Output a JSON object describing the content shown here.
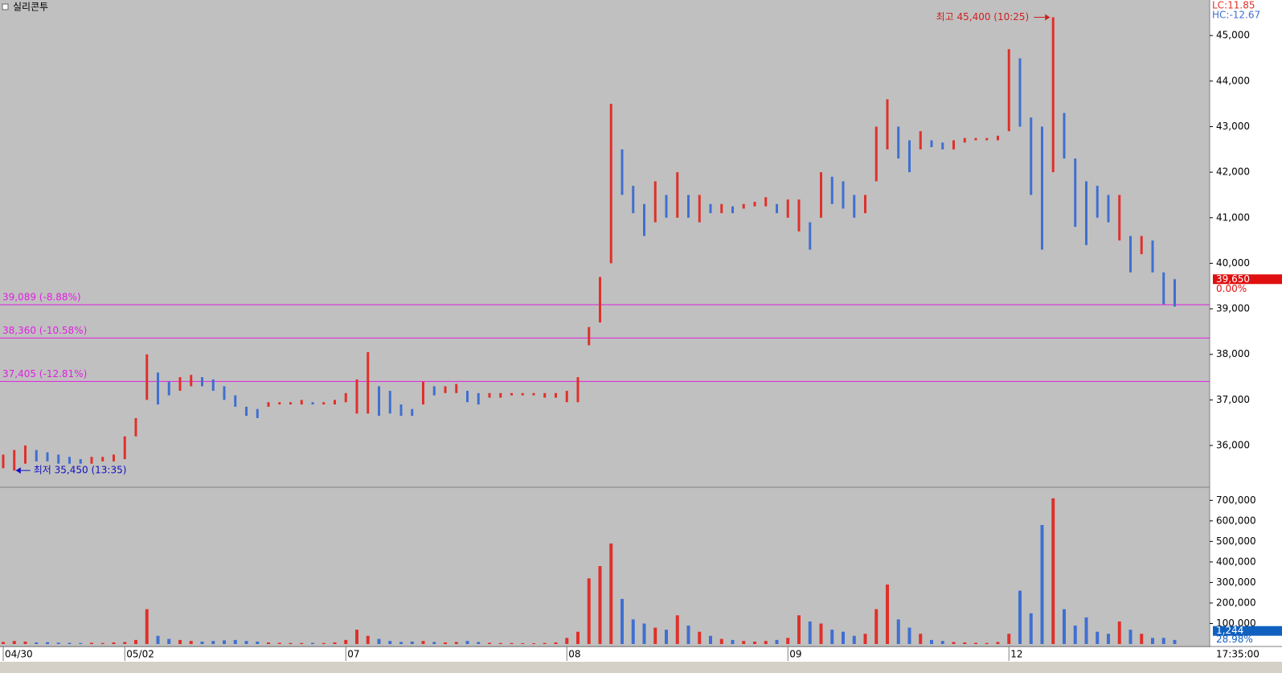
{
  "chart_data": [
    {
      "type": "ohlc",
      "title": "실리콘투",
      "lc_label": "LC:11.85",
      "hc_label": "HC:-12.67",
      "categories": [
        "04/30",
        null,
        null,
        null,
        null,
        null,
        null,
        null,
        null,
        null,
        null,
        "05/02",
        null,
        null,
        null,
        null,
        null,
        null,
        null,
        null,
        null,
        null,
        null,
        null,
        null,
        null,
        null,
        null,
        null,
        null,
        null,
        "07",
        null,
        null,
        null,
        null,
        null,
        null,
        null,
        null,
        null,
        null,
        null,
        null,
        null,
        null,
        null,
        null,
        null,
        null,
        null,
        "08",
        null,
        null,
        null,
        null,
        null,
        null,
        null,
        null,
        null,
        null,
        null,
        null,
        null,
        null,
        null,
        null,
        null,
        null,
        null,
        "09",
        null,
        null,
        null,
        null,
        null,
        null,
        null,
        null,
        null,
        null,
        null,
        null,
        null,
        null,
        null,
        null,
        null,
        null,
        null,
        "12",
        null,
        null,
        null,
        null,
        null,
        null,
        null,
        null,
        null,
        null,
        null,
        null,
        null,
        null,
        null
      ],
      "high": [
        35800,
        35900,
        36000,
        35900,
        35850,
        35800,
        35750,
        35700,
        35750,
        35750,
        35800,
        36200,
        36600,
        38000,
        37600,
        37400,
        37500,
        37550,
        37500,
        37450,
        37300,
        37100,
        36850,
        36800,
        36950,
        36950,
        36950,
        37000,
        36950,
        36950,
        37000,
        37150,
        37450,
        38050,
        37300,
        37200,
        36900,
        36800,
        37400,
        37300,
        37300,
        37350,
        37200,
        37150,
        37150,
        37150,
        37150,
        37150,
        37150,
        37150,
        37150,
        37200,
        37500,
        38600,
        39700,
        43500,
        42500,
        41700,
        41300,
        41800,
        41500,
        42000,
        41500,
        41500,
        41300,
        41300,
        41250,
        41300,
        41350,
        41450,
        41300,
        41400,
        41400,
        40900,
        42000,
        41900,
        41800,
        41500,
        41500,
        43000,
        43600,
        43000,
        42700,
        42900,
        42700,
        42650,
        42700,
        42750,
        42750,
        42750,
        42800,
        44700,
        44500,
        43200,
        43000,
        45400,
        43300,
        42300,
        41800,
        41700,
        41500,
        41500,
        40600,
        40600,
        40500,
        39800,
        39650
      ],
      "low": [
        35500,
        35450,
        35600,
        35650,
        35650,
        35600,
        35600,
        35600,
        35600,
        35650,
        35650,
        35700,
        36200,
        37000,
        36900,
        37100,
        37200,
        37300,
        37300,
        37200,
        37000,
        36850,
        36650,
        36600,
        36850,
        36900,
        36900,
        36900,
        36900,
        36900,
        36900,
        36950,
        36700,
        36700,
        36650,
        36700,
        36650,
        36650,
        36900,
        37100,
        37150,
        37150,
        36950,
        36900,
        37050,
        37050,
        37100,
        37100,
        37100,
        37050,
        37050,
        36950,
        36950,
        38200,
        38700,
        40000,
        41500,
        41100,
        40600,
        40900,
        41000,
        41000,
        41000,
        40900,
        41100,
        41100,
        41100,
        41200,
        41250,
        41250,
        41100,
        41000,
        40700,
        40300,
        41000,
        41300,
        41200,
        41000,
        41100,
        41800,
        42500,
        42300,
        42000,
        42500,
        42550,
        42500,
        42500,
        42650,
        42700,
        42700,
        42700,
        42900,
        43000,
        41500,
        40300,
        42000,
        42300,
        40800,
        40400,
        41000,
        40900,
        40500,
        39800,
        40200,
        39800,
        39100,
        39050
      ],
      "up_color": "#e0302a",
      "down_color": "#3f6fd0",
      "ylim": [
        35100,
        45780
      ],
      "yticks": [
        {
          "value": 36000,
          "label": "36,000"
        },
        {
          "value": 37000,
          "label": "37,000"
        },
        {
          "value": 38000,
          "label": "38,000"
        },
        {
          "value": 39000,
          "label": "39,000"
        },
        {
          "value": 40000,
          "label": "40,000"
        },
        {
          "value": 41000,
          "label": "41,000"
        },
        {
          "value": 42000,
          "label": "42,000"
        },
        {
          "value": 43000,
          "label": "43,000"
        },
        {
          "value": 44000,
          "label": "44,000"
        },
        {
          "value": 45000,
          "label": "45,000"
        }
      ],
      "levels": [
        {
          "value": 39089,
          "label": "39,089 (-8.88%)"
        },
        {
          "value": 38360,
          "label": "38,360 (-10.58%)"
        },
        {
          "value": 37405,
          "label": "37,405 (-12.81%)"
        }
      ],
      "level_color": "#e020e0",
      "max_annotation": {
        "value": 45400,
        "label": "최고 45,400 (10:25)"
      },
      "min_annotation": {
        "value": 35450,
        "label": "최저 35,450 (13:35)"
      },
      "current": {
        "value": 39650,
        "label": "39,650"
      },
      "change_label": "0.00%",
      "time_label": "17:35:00"
    },
    {
      "type": "bar",
      "values": [
        10000,
        15000,
        12000,
        8000,
        9000,
        7000,
        6000,
        5000,
        6000,
        5000,
        8000,
        10000,
        20000,
        170000,
        40000,
        25000,
        20000,
        15000,
        12000,
        15000,
        18000,
        20000,
        15000,
        12000,
        8000,
        6000,
        5000,
        5000,
        6000,
        5000,
        8000,
        20000,
        70000,
        40000,
        25000,
        15000,
        10000,
        12000,
        15000,
        10000,
        8000,
        10000,
        15000,
        10000,
        6000,
        5000,
        5000,
        4000,
        4000,
        5000,
        8000,
        30000,
        60000,
        320000,
        380000,
        490000,
        220000,
        120000,
        100000,
        80000,
        70000,
        140000,
        90000,
        60000,
        40000,
        25000,
        20000,
        15000,
        12000,
        15000,
        20000,
        30000,
        140000,
        110000,
        100000,
        70000,
        60000,
        40000,
        50000,
        170000,
        290000,
        120000,
        80000,
        50000,
        20000,
        15000,
        10000,
        8000,
        6000,
        5000,
        10000,
        50000,
        260000,
        150000,
        580000,
        710000,
        170000,
        90000,
        130000,
        60000,
        50000,
        110000,
        70000,
        50000,
        30000,
        30000,
        20000
      ],
      "ylim": [
        0,
        760000
      ],
      "yticks": [
        {
          "value": 100000,
          "label": "100,000"
        },
        {
          "value": 200000,
          "label": "200,000"
        },
        {
          "value": 300000,
          "label": "300,000"
        },
        {
          "value": 400000,
          "label": "400,000"
        },
        {
          "value": 500000,
          "label": "500,000"
        },
        {
          "value": 600000,
          "label": "600,000"
        },
        {
          "value": 700000,
          "label": "700,000"
        }
      ],
      "current": {
        "value": 1244,
        "label": "1,244"
      },
      "ratio_label": "28.98%"
    }
  ]
}
